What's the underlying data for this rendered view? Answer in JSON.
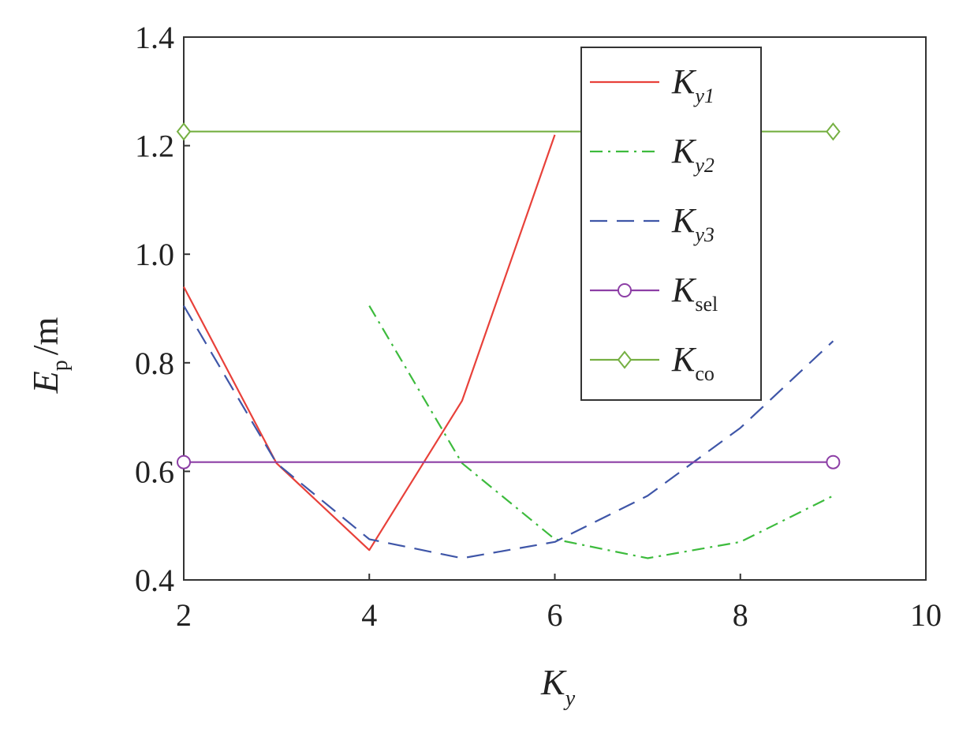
{
  "chart_data": {
    "type": "line",
    "xlabel": {
      "main": "K",
      "sub": "y"
    },
    "ylabel": {
      "main": "E",
      "sub": "p",
      "unit": "/m"
    },
    "xlim": [
      2,
      10
    ],
    "ylim": [
      0.4,
      1.4
    ],
    "xticks": [
      2,
      4,
      6,
      8,
      10
    ],
    "yticks": [
      0.4,
      0.6,
      0.8,
      1.0,
      1.2,
      1.4
    ],
    "xtick_labels": [
      "2",
      "4",
      "6",
      "8",
      "10"
    ],
    "ytick_labels": [
      "0.4",
      "0.6",
      "0.8",
      "1.0",
      "1.2",
      "1.4"
    ],
    "grid": false,
    "legend_position": "top-right",
    "series": [
      {
        "name": {
          "main": "K",
          "sub": "y1"
        },
        "color": "#e8413a",
        "style": "solid",
        "marker": "none",
        "x": [
          2,
          3,
          4,
          5,
          6
        ],
        "y": [
          0.94,
          0.615,
          0.455,
          0.73,
          1.22
        ]
      },
      {
        "name": {
          "main": "K",
          "sub": "y2"
        },
        "color": "#3dbb3d",
        "style": "dashdot",
        "marker": "none",
        "x": [
          4,
          5,
          6,
          7,
          8,
          9
        ],
        "y": [
          0.905,
          0.615,
          0.475,
          0.44,
          0.47,
          0.555
        ]
      },
      {
        "name": {
          "main": "K",
          "sub": "y3"
        },
        "color": "#3f56a8",
        "style": "dashed",
        "marker": "none",
        "x": [
          2,
          3,
          4,
          5,
          6,
          7,
          8,
          9
        ],
        "y": [
          0.905,
          0.615,
          0.475,
          0.44,
          0.47,
          0.555,
          0.68,
          0.84
        ]
      },
      {
        "name": {
          "main": "K",
          "sub": "sel"
        },
        "color": "#8d3fa6",
        "style": "solid",
        "marker": "circle",
        "x": [
          2,
          9
        ],
        "y": [
          0.617,
          0.617
        ]
      },
      {
        "name": {
          "main": "K",
          "sub": "co"
        },
        "color": "#76b043",
        "style": "solid",
        "marker": "diamond",
        "x": [
          2,
          9
        ],
        "y": [
          1.226,
          1.226
        ]
      }
    ]
  }
}
